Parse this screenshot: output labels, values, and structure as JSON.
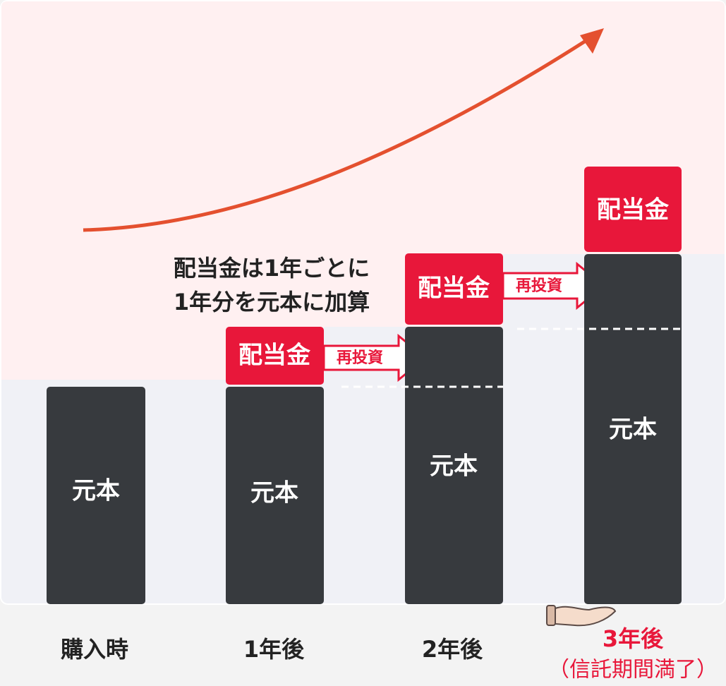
{
  "callout": {
    "lines": [
      "配当金は1年ごとに",
      "1年分を元本に加算"
    ]
  },
  "columns": [
    {
      "label": "購入時",
      "principal": "元本"
    },
    {
      "label": "1年後",
      "principal": "元本",
      "dividend": "配当金",
      "reinvest": "再投資"
    },
    {
      "label": "2年後",
      "principal": "元本",
      "dividend": "配当金",
      "reinvest": "再投資"
    },
    {
      "label": "3年後",
      "note": "（信託期間満了）",
      "principal": "元本",
      "dividend": "配当金"
    }
  ]
}
